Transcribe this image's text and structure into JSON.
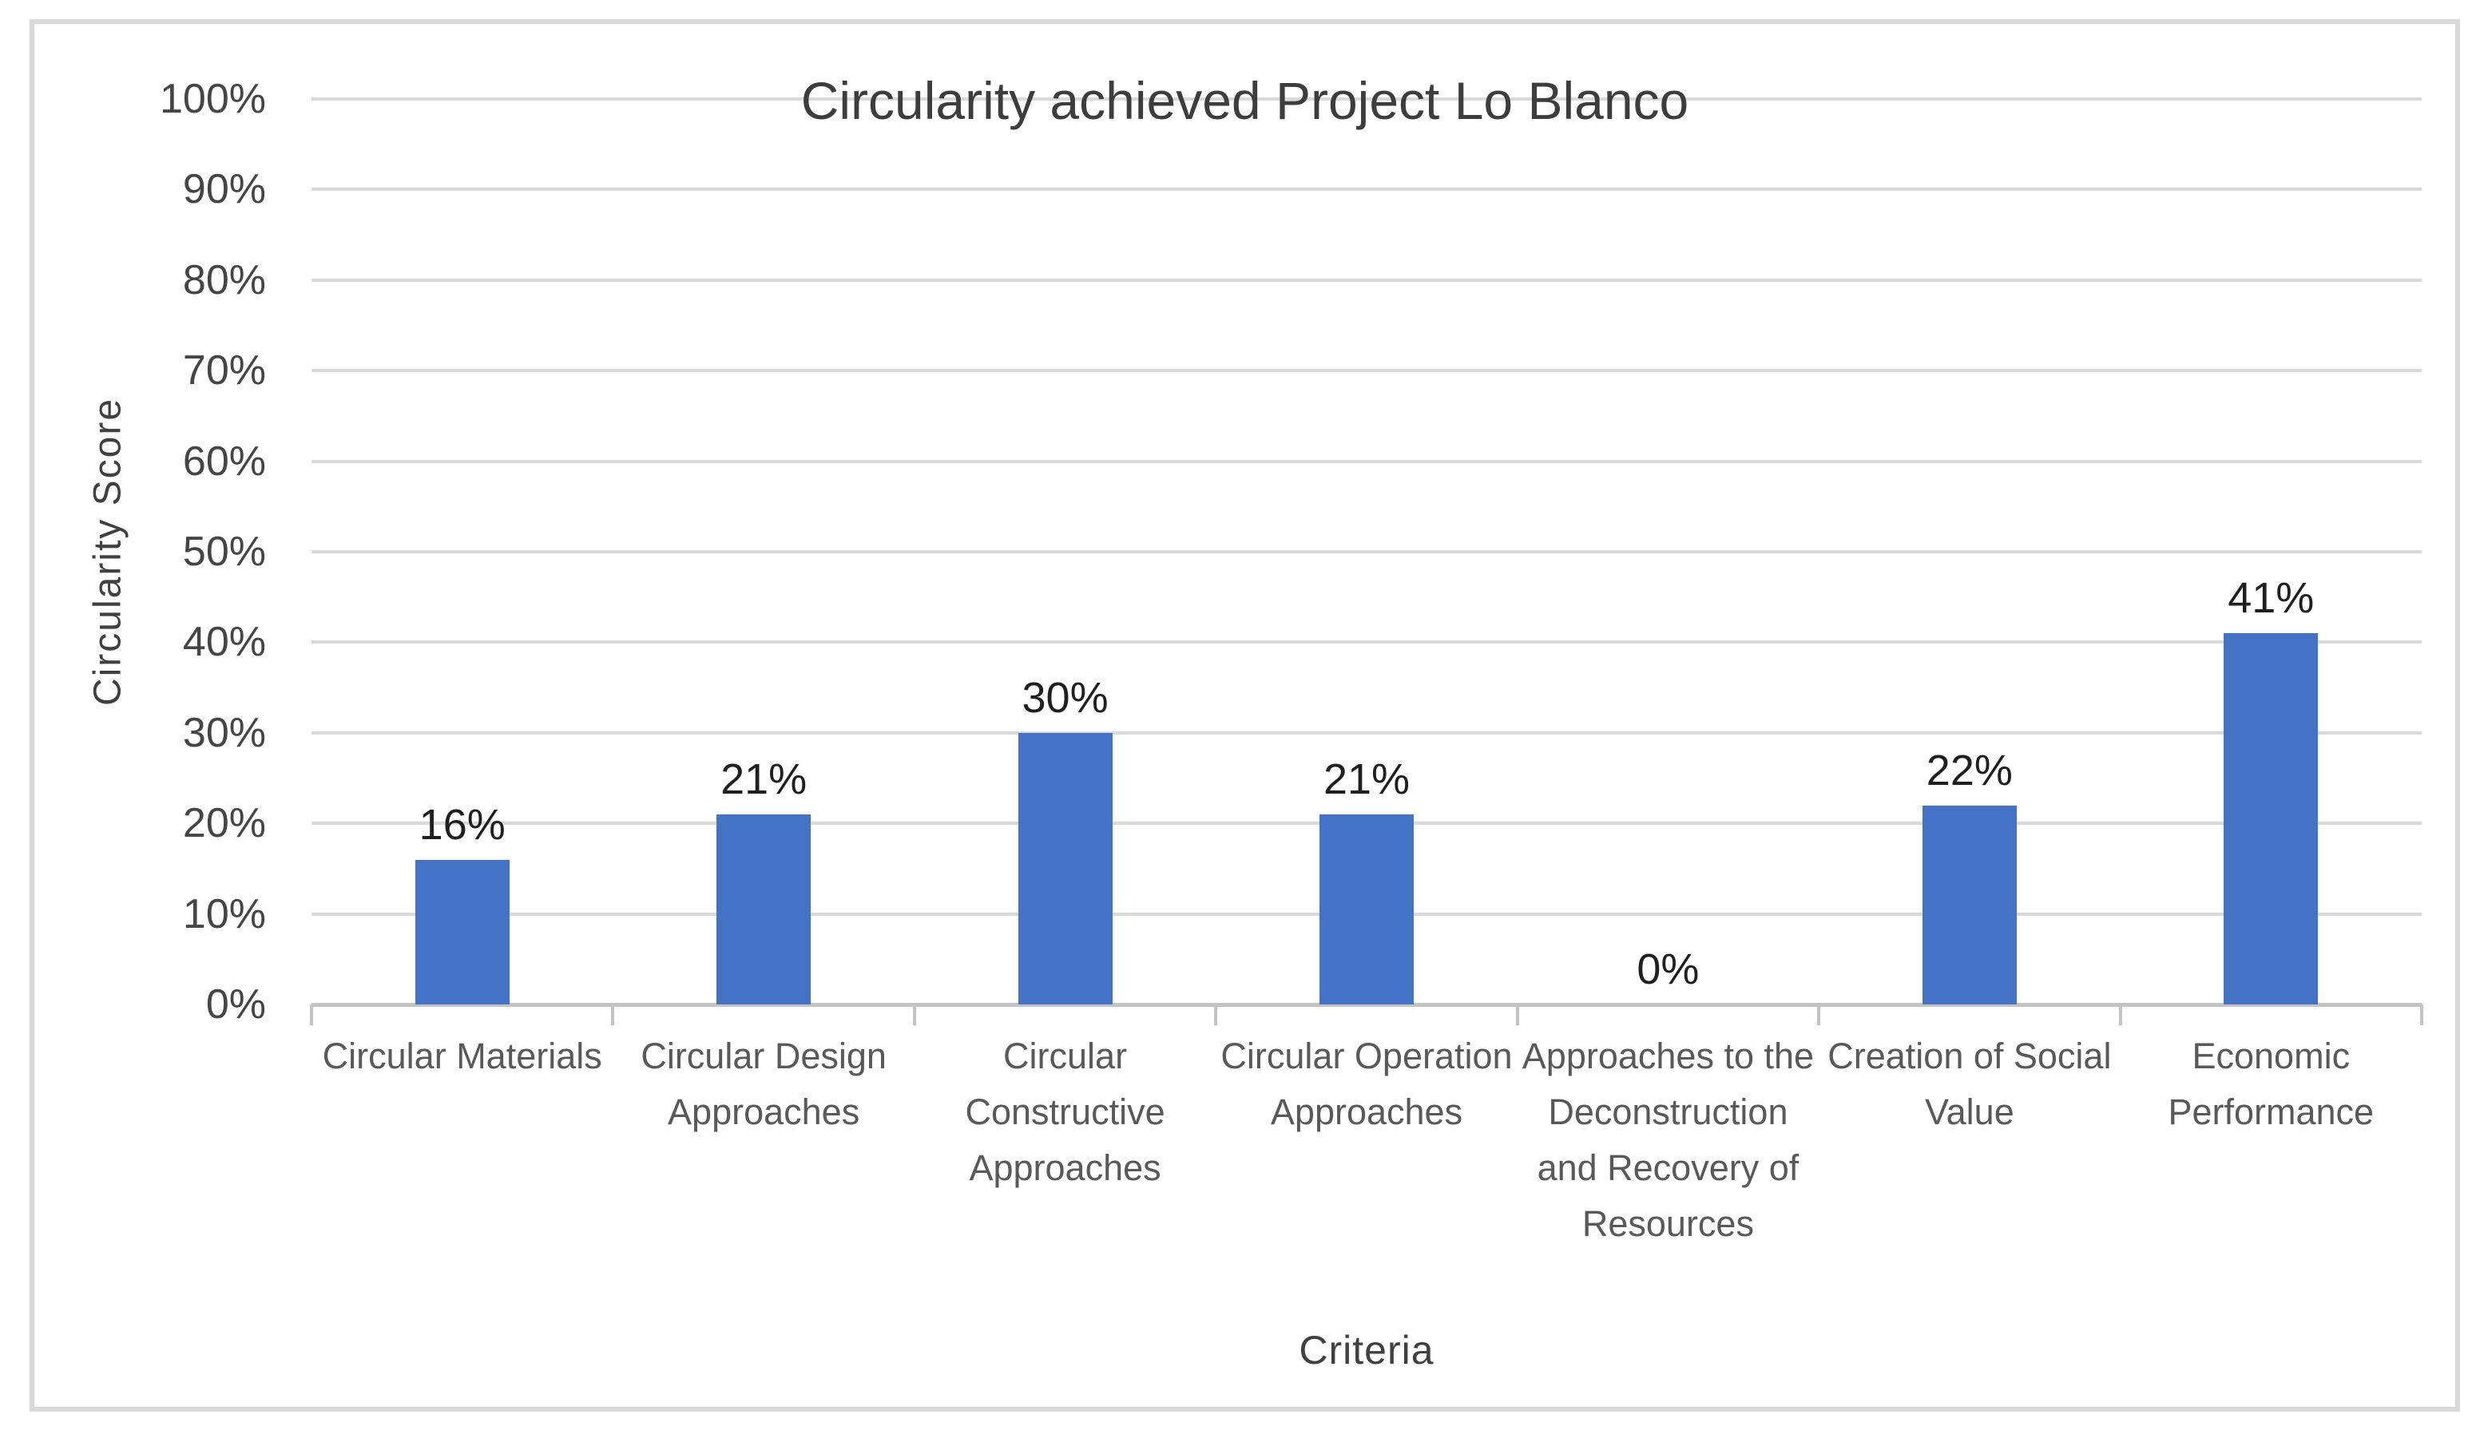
{
  "figure": {
    "title": "Circularity achieved Project Lo Blanco"
  },
  "chart_data": {
    "type": "bar",
    "title": "Circularity achieved Project Lo Blanco",
    "categories": [
      "Circular Materials",
      "Circular Design Approaches",
      "Circular Constructive Approaches",
      "Circular Operation Approaches",
      "Approaches to the Deconstruction and Recovery of Resources",
      "Creation of Social Value",
      "Economic Performance"
    ],
    "values": [
      16,
      21,
      30,
      21,
      0,
      22,
      41
    ],
    "data_labels": [
      "16%",
      "21%",
      "30%",
      "21%",
      "0%",
      "22%",
      "41%"
    ],
    "xlabel": "Criteria",
    "ylabel": "Circularity Score",
    "ylim": [
      0,
      100
    ],
    "ytick_step": 10,
    "ytick_labels": [
      "0%",
      "10%",
      "20%",
      "30%",
      "40%",
      "50%",
      "60%",
      "70%",
      "80%",
      "90%",
      "100%"
    ],
    "grid": true,
    "legend": false,
    "bar_color": "#4472c4",
    "gridline_color": "#d9d9d9"
  }
}
